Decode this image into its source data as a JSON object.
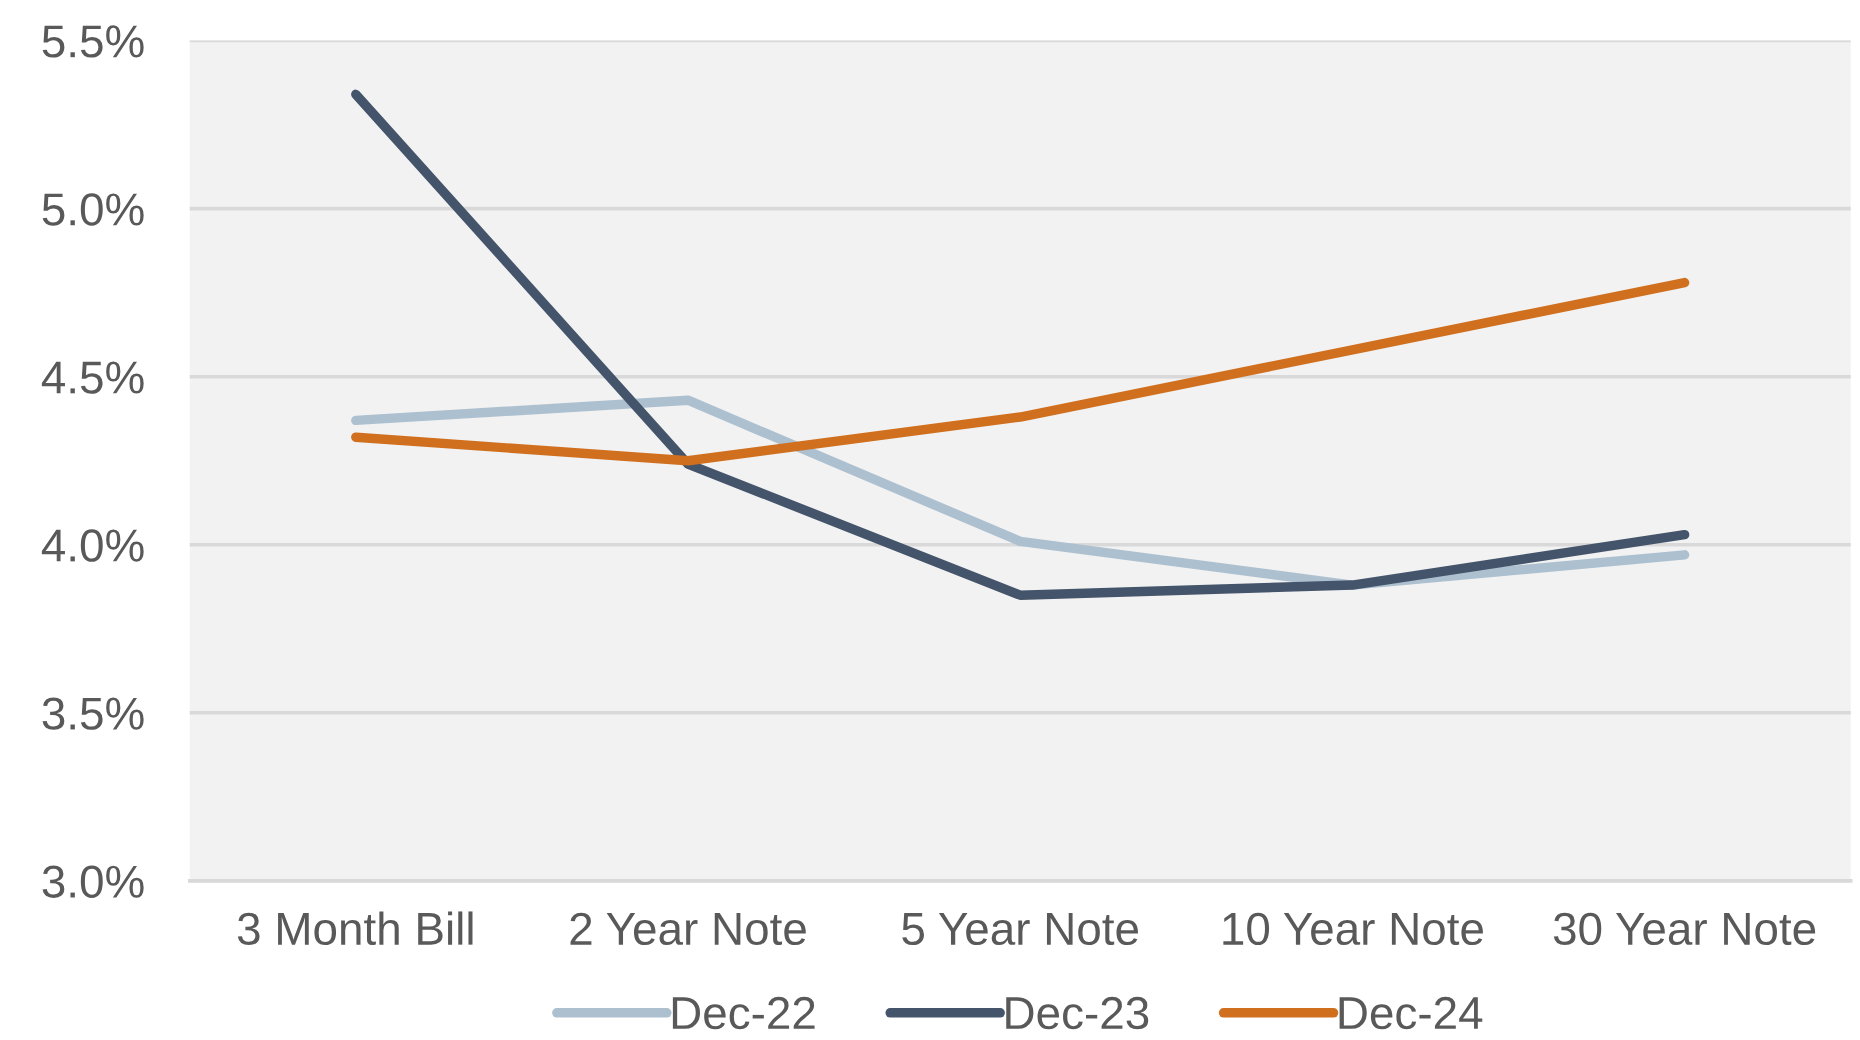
{
  "chart_data": {
    "type": "line",
    "categories": [
      "3 Month Bill",
      "2 Year Note",
      "5 Year Note",
      "10 Year Note",
      "30 Year Note"
    ],
    "series": [
      {
        "name": "Dec-22",
        "color": "#adc0d0",
        "values": [
          4.37,
          4.43,
          4.01,
          3.88,
          3.97
        ]
      },
      {
        "name": "Dec-23",
        "color": "#44546a",
        "values": [
          5.34,
          4.24,
          3.85,
          3.88,
          4.03
        ]
      },
      {
        "name": "Dec-24",
        "color": "#d06f1e",
        "values": [
          4.32,
          4.25,
          4.38,
          4.58,
          4.78
        ]
      }
    ],
    "ylim": [
      3.0,
      5.5
    ],
    "yticks": [
      {
        "value": 3.0,
        "label": "3.0%"
      },
      {
        "value": 3.5,
        "label": "3.5%"
      },
      {
        "value": 4.0,
        "label": "4.0%"
      },
      {
        "value": 4.5,
        "label": "4.5%"
      },
      {
        "value": 5.0,
        "label": "5.0%"
      },
      {
        "value": 5.5,
        "label": "5.5%"
      }
    ],
    "grid": "y",
    "legend": "bottom",
    "line_style": "solid"
  }
}
